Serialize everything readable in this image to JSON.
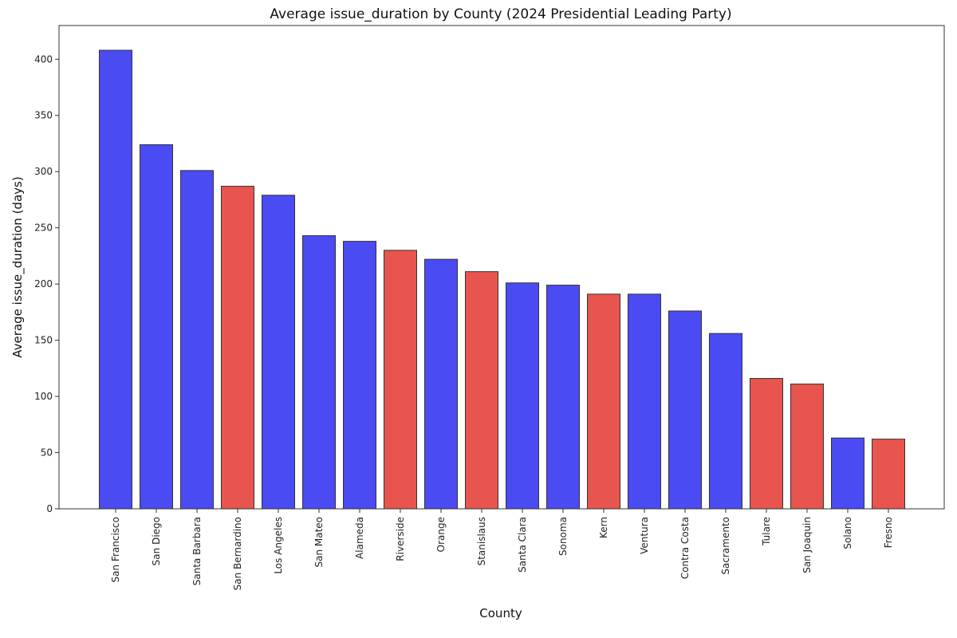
{
  "chart_data": {
    "type": "bar",
    "title": "Average issue_duration by County (2024 Presidential Leading Party)",
    "xlabel": "County",
    "ylabel": "Average issue_duration (days)",
    "ylim": [
      0,
      430
    ],
    "yticks": [
      0,
      50,
      100,
      150,
      200,
      250,
      300,
      350,
      400
    ],
    "grid": false,
    "categories": [
      "San Francisco",
      "San Diego",
      "Santa Barbara",
      "San Bernardino",
      "Los Angeles",
      "San Mateo",
      "Alameda",
      "Riverside",
      "Orange",
      "Stanislaus",
      "Santa Clara",
      "Sonoma",
      "Kern",
      "Ventura",
      "Contra Costa",
      "Sacramento",
      "Tulare",
      "San Joaquin",
      "Solano",
      "Fresno"
    ],
    "values": [
      408,
      324,
      301,
      287,
      279,
      243,
      238,
      230,
      222,
      211,
      201,
      199,
      191,
      191,
      176,
      156,
      116,
      111,
      63,
      62
    ],
    "bar_colors": [
      "#4b4bf3",
      "#4b4bf3",
      "#4b4bf3",
      "#e8554e",
      "#4b4bf3",
      "#4b4bf3",
      "#4b4bf3",
      "#e8554e",
      "#4b4bf3",
      "#e8554e",
      "#4b4bf3",
      "#4b4bf3",
      "#e8554e",
      "#4b4bf3",
      "#4b4bf3",
      "#4b4bf3",
      "#e8554e",
      "#e8554e",
      "#4b4bf3",
      "#e8554e"
    ],
    "colors": {
      "democratic": "#4b4bf3",
      "republican": "#e8554e",
      "bar_edge": "#333333",
      "axis": "#333333"
    }
  }
}
